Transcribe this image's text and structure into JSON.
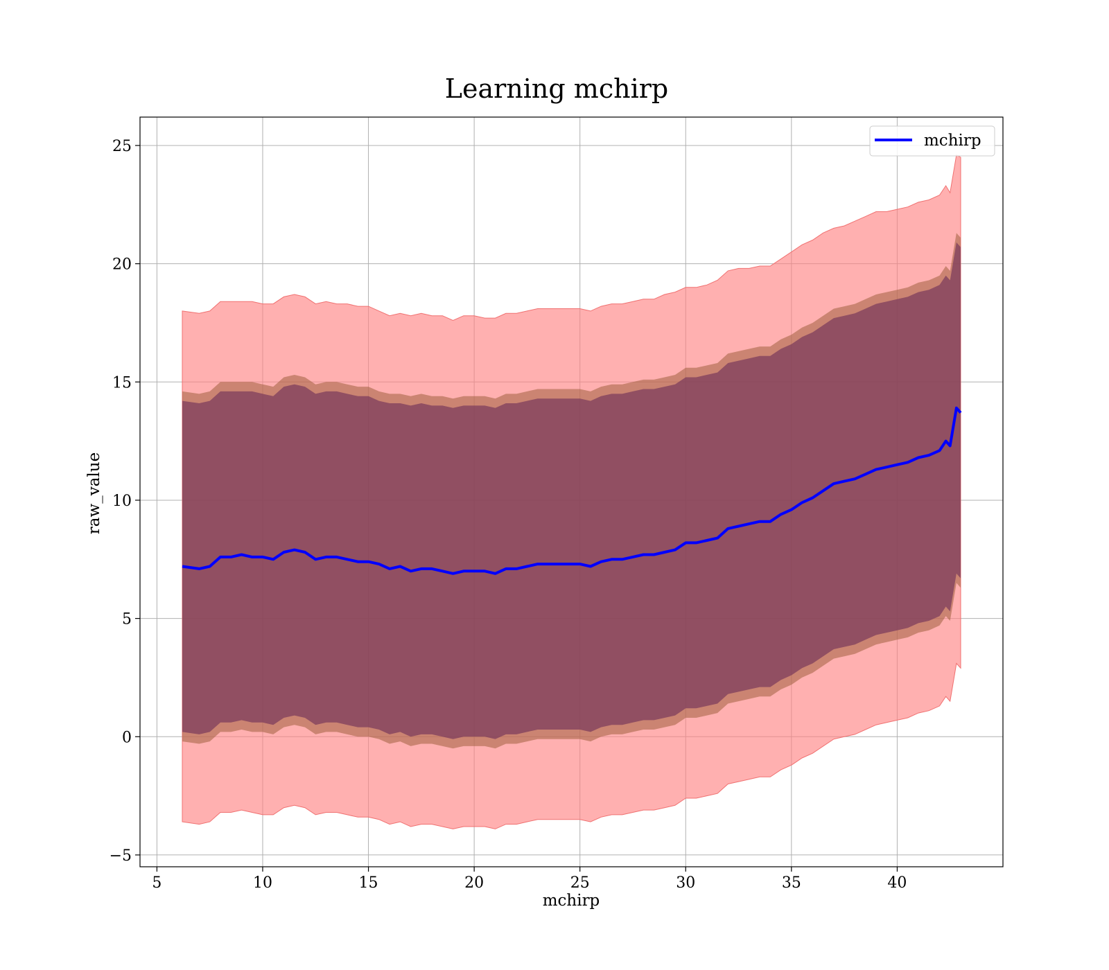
{
  "chart_data": {
    "type": "line",
    "title": "Learning mchirp",
    "xlabel": "mchirp",
    "ylabel": "raw_value",
    "xlim": [
      4.2,
      45.0
    ],
    "ylim": [
      -5.5,
      26.2
    ],
    "xticks": [
      5,
      10,
      15,
      20,
      25,
      30,
      35,
      40
    ],
    "yticks": [
      -5,
      0,
      5,
      10,
      15,
      20,
      25
    ],
    "xtick_labels": [
      "5",
      "10",
      "15",
      "20",
      "25",
      "30",
      "35",
      "40"
    ],
    "ytick_labels": [
      "−5",
      "0",
      "5",
      "10",
      "15",
      "20",
      "25"
    ],
    "grid": true,
    "legend_position": "top-right",
    "colors": {
      "line": "#0000ff",
      "band_outer": "#ff7f7f",
      "band_mid": "#a06040",
      "band_inner": "#7a3a5c",
      "grid": "#b0b0b0"
    },
    "series": [
      {
        "name": "mchirp",
        "x": [
          6.2,
          7.0,
          7.5,
          8.0,
          8.5,
          9.0,
          9.5,
          10.0,
          10.5,
          11.0,
          11.5,
          12.0,
          12.5,
          13.0,
          13.5,
          14.0,
          14.5,
          15.0,
          15.5,
          16.0,
          16.5,
          17.0,
          17.5,
          18.0,
          18.5,
          19.0,
          19.5,
          20.0,
          20.5,
          21.0,
          21.5,
          22.0,
          22.5,
          23.0,
          23.5,
          24.0,
          24.5,
          25.0,
          25.5,
          26.0,
          26.5,
          27.0,
          27.5,
          28.0,
          28.5,
          29.0,
          29.5,
          30.0,
          30.5,
          31.0,
          31.5,
          32.0,
          32.5,
          33.0,
          33.5,
          34.0,
          34.5,
          35.0,
          35.5,
          36.0,
          36.5,
          37.0,
          37.5,
          38.0,
          38.5,
          39.0,
          39.5,
          40.0,
          40.5,
          41.0,
          41.5,
          42.0,
          42.3,
          42.5,
          42.8,
          43.0
        ],
        "y": [
          7.2,
          7.1,
          7.2,
          7.6,
          7.6,
          7.7,
          7.6,
          7.6,
          7.5,
          7.8,
          7.9,
          7.8,
          7.5,
          7.6,
          7.6,
          7.5,
          7.4,
          7.4,
          7.3,
          7.1,
          7.2,
          7.0,
          7.1,
          7.1,
          7.0,
          6.9,
          7.0,
          7.0,
          7.0,
          6.9,
          7.1,
          7.1,
          7.2,
          7.3,
          7.3,
          7.3,
          7.3,
          7.3,
          7.2,
          7.4,
          7.5,
          7.5,
          7.6,
          7.7,
          7.7,
          7.8,
          7.9,
          8.2,
          8.2,
          8.3,
          8.4,
          8.8,
          8.9,
          9.0,
          9.1,
          9.1,
          9.4,
          9.6,
          9.9,
          10.1,
          10.4,
          10.7,
          10.8,
          10.9,
          11.1,
          11.3,
          11.4,
          11.5,
          11.6,
          11.8,
          11.9,
          12.1,
          12.5,
          12.3,
          13.9,
          13.7
        ],
        "band_outer_upper": [
          18.0,
          17.9,
          18.0,
          18.4,
          18.4,
          18.4,
          18.4,
          18.3,
          18.3,
          18.6,
          18.7,
          18.6,
          18.3,
          18.4,
          18.3,
          18.3,
          18.2,
          18.2,
          18.0,
          17.8,
          17.9,
          17.8,
          17.9,
          17.8,
          17.8,
          17.6,
          17.8,
          17.8,
          17.7,
          17.7,
          17.9,
          17.9,
          18.0,
          18.1,
          18.1,
          18.1,
          18.1,
          18.1,
          18.0,
          18.2,
          18.3,
          18.3,
          18.4,
          18.5,
          18.5,
          18.7,
          18.8,
          19.0,
          19.0,
          19.1,
          19.3,
          19.7,
          19.8,
          19.8,
          19.9,
          19.9,
          20.2,
          20.5,
          20.8,
          21.0,
          21.3,
          21.5,
          21.6,
          21.8,
          22.0,
          22.2,
          22.2,
          22.3,
          22.4,
          22.6,
          22.7,
          22.9,
          23.3,
          23.0,
          24.6,
          24.5
        ],
        "band_mid_upper": [
          14.6,
          14.5,
          14.6,
          15.0,
          15.0,
          15.0,
          15.0,
          14.9,
          14.8,
          15.2,
          15.3,
          15.2,
          14.9,
          15.0,
          15.0,
          14.9,
          14.8,
          14.8,
          14.6,
          14.5,
          14.5,
          14.4,
          14.5,
          14.4,
          14.4,
          14.3,
          14.4,
          14.4,
          14.4,
          14.3,
          14.5,
          14.5,
          14.6,
          14.7,
          14.7,
          14.7,
          14.7,
          14.7,
          14.6,
          14.8,
          14.9,
          14.9,
          15.0,
          15.1,
          15.1,
          15.2,
          15.3,
          15.6,
          15.6,
          15.7,
          15.8,
          16.2,
          16.3,
          16.4,
          16.5,
          16.5,
          16.8,
          17.0,
          17.3,
          17.5,
          17.8,
          18.1,
          18.2,
          18.3,
          18.5,
          18.7,
          18.8,
          18.9,
          19.0,
          19.2,
          19.3,
          19.5,
          19.9,
          19.7,
          21.3,
          21.1
        ],
        "band_inner_upper": [
          14.2,
          14.1,
          14.2,
          14.6,
          14.6,
          14.6,
          14.6,
          14.5,
          14.4,
          14.8,
          14.9,
          14.8,
          14.5,
          14.6,
          14.6,
          14.5,
          14.4,
          14.4,
          14.2,
          14.1,
          14.1,
          14.0,
          14.1,
          14.0,
          14.0,
          13.9,
          14.0,
          14.0,
          14.0,
          13.9,
          14.1,
          14.1,
          14.2,
          14.3,
          14.3,
          14.3,
          14.3,
          14.3,
          14.2,
          14.4,
          14.5,
          14.5,
          14.6,
          14.7,
          14.7,
          14.8,
          14.9,
          15.2,
          15.2,
          15.3,
          15.4,
          15.8,
          15.9,
          16.0,
          16.1,
          16.1,
          16.4,
          16.6,
          16.9,
          17.1,
          17.4,
          17.7,
          17.8,
          17.9,
          18.1,
          18.3,
          18.4,
          18.5,
          18.6,
          18.8,
          18.9,
          19.1,
          19.5,
          19.3,
          20.9,
          20.7
        ],
        "band_inner_lower": [
          0.2,
          0.1,
          0.2,
          0.6,
          0.6,
          0.7,
          0.6,
          0.6,
          0.5,
          0.8,
          0.9,
          0.8,
          0.5,
          0.6,
          0.6,
          0.5,
          0.4,
          0.4,
          0.3,
          0.1,
          0.2,
          0.0,
          0.1,
          0.1,
          0.0,
          -0.1,
          0.0,
          0.0,
          0.0,
          -0.1,
          0.1,
          0.1,
          0.2,
          0.3,
          0.3,
          0.3,
          0.3,
          0.3,
          0.2,
          0.4,
          0.5,
          0.5,
          0.6,
          0.7,
          0.7,
          0.8,
          0.9,
          1.2,
          1.2,
          1.3,
          1.4,
          1.8,
          1.9,
          2.0,
          2.1,
          2.1,
          2.4,
          2.6,
          2.9,
          3.1,
          3.4,
          3.7,
          3.8,
          3.9,
          4.1,
          4.3,
          4.4,
          4.5,
          4.6,
          4.8,
          4.9,
          5.1,
          5.5,
          5.3,
          6.9,
          6.7
        ],
        "band_mid_lower": [
          -0.2,
          -0.3,
          -0.2,
          0.2,
          0.2,
          0.3,
          0.2,
          0.2,
          0.1,
          0.4,
          0.5,
          0.4,
          0.1,
          0.2,
          0.2,
          0.1,
          0.0,
          0.0,
          -0.1,
          -0.3,
          -0.2,
          -0.4,
          -0.3,
          -0.3,
          -0.4,
          -0.5,
          -0.4,
          -0.4,
          -0.4,
          -0.5,
          -0.3,
          -0.3,
          -0.2,
          -0.1,
          -0.1,
          -0.1,
          -0.1,
          -0.1,
          -0.2,
          0.0,
          0.1,
          0.1,
          0.2,
          0.3,
          0.3,
          0.4,
          0.5,
          0.8,
          0.8,
          0.9,
          1.0,
          1.4,
          1.5,
          1.6,
          1.7,
          1.7,
          2.0,
          2.2,
          2.5,
          2.7,
          3.0,
          3.3,
          3.4,
          3.5,
          3.7,
          3.9,
          4.0,
          4.1,
          4.2,
          4.4,
          4.5,
          4.7,
          5.1,
          4.9,
          6.5,
          6.3
        ],
        "band_outer_lower": [
          -3.6,
          -3.7,
          -3.6,
          -3.2,
          -3.2,
          -3.1,
          -3.2,
          -3.3,
          -3.3,
          -3.0,
          -2.9,
          -3.0,
          -3.3,
          -3.2,
          -3.2,
          -3.3,
          -3.4,
          -3.4,
          -3.5,
          -3.7,
          -3.6,
          -3.8,
          -3.7,
          -3.7,
          -3.8,
          -3.9,
          -3.8,
          -3.8,
          -3.8,
          -3.9,
          -3.7,
          -3.7,
          -3.6,
          -3.5,
          -3.5,
          -3.5,
          -3.5,
          -3.5,
          -3.6,
          -3.4,
          -3.3,
          -3.3,
          -3.2,
          -3.1,
          -3.1,
          -3.0,
          -2.9,
          -2.6,
          -2.6,
          -2.5,
          -2.4,
          -2.0,
          -1.9,
          -1.8,
          -1.7,
          -1.7,
          -1.4,
          -1.2,
          -0.9,
          -0.7,
          -0.4,
          -0.1,
          0.0,
          0.1,
          0.3,
          0.5,
          0.6,
          0.7,
          0.8,
          1.0,
          1.1,
          1.3,
          1.7,
          1.5,
          3.1,
          2.9
        ]
      }
    ]
  }
}
